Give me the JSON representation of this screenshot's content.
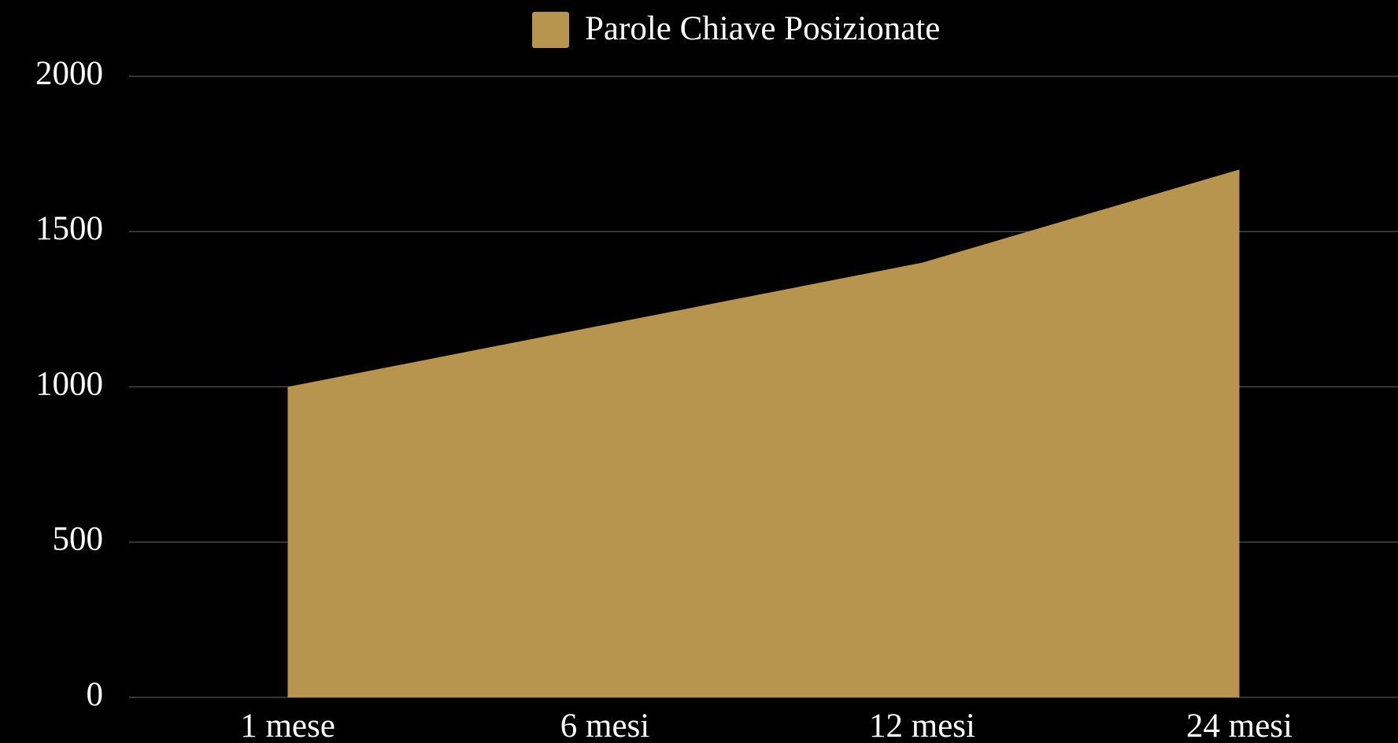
{
  "chart_data": {
    "type": "area",
    "categories": [
      "1 mese",
      "6 mesi",
      "12 mesi",
      "24 mesi"
    ],
    "series": [
      {
        "name": "Parole Chiave Posizionate",
        "color": "#b8954f",
        "values": [
          1000,
          1200,
          1400,
          1700
        ]
      }
    ],
    "ylim": [
      0,
      2000
    ],
    "yticks": [
      0,
      500,
      1000,
      1500,
      2000
    ],
    "grid": true,
    "legend": "top"
  }
}
